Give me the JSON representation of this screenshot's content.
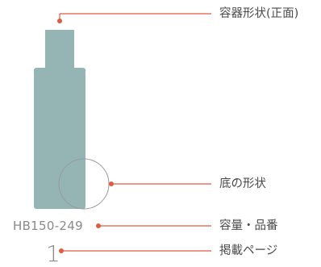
{
  "labels": {
    "container_shape": "容器形状(正面)",
    "bottom_shape": "底の形状",
    "capacity_code": "容量・品番",
    "page": "掲載ページ"
  },
  "product": {
    "code": "HB150-249",
    "page_number": "1"
  },
  "colors": {
    "bottle": "#95b5b5",
    "leader": "#e05b43",
    "circle_outline": "#9a9a9a",
    "text": "#4a4a4a",
    "muted_text": "#8a8a8a"
  }
}
